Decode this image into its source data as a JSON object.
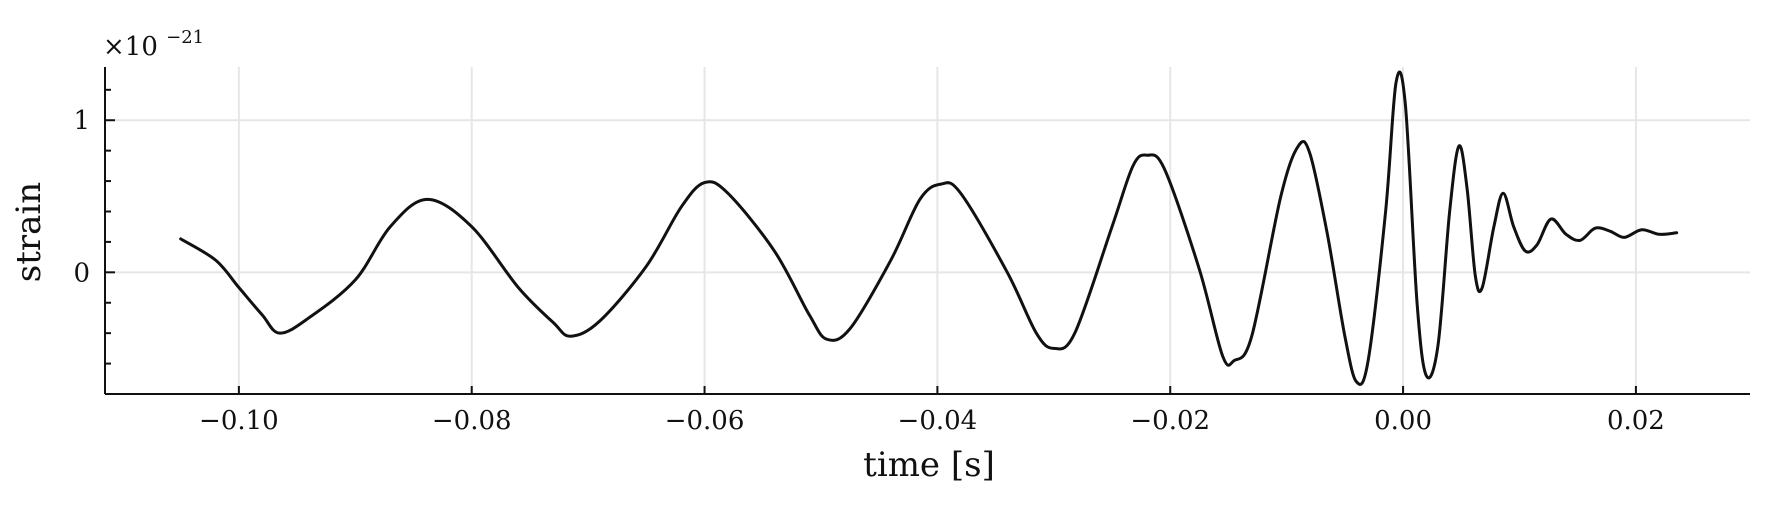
{
  "chart_data": {
    "type": "line",
    "title": "",
    "xlabel": "time [s]",
    "ylabel": "strain",
    "y_multiplier": {
      "base": "×10",
      "exponent": "−21"
    },
    "xlim": [
      -0.1115,
      0.0298
    ],
    "ylim": [
      -0.8,
      1.35
    ],
    "grid": true,
    "x_ticks": [
      {
        "value": -0.1,
        "label": "−0.10"
      },
      {
        "value": -0.08,
        "label": "−0.08"
      },
      {
        "value": -0.06,
        "label": "−0.06"
      },
      {
        "value": -0.04,
        "label": "−0.04"
      },
      {
        "value": -0.02,
        "label": "−0.02"
      },
      {
        "value": 0.0,
        "label": "0.00"
      },
      {
        "value": 0.02,
        "label": "0.02"
      }
    ],
    "y_ticks": [
      {
        "value": 1,
        "label": "1"
      },
      {
        "value": 0,
        "label": "0"
      }
    ],
    "y_minor_ticks": [
      -0.6,
      -0.4,
      -0.2,
      0.2,
      0.4,
      0.6,
      0.8,
      1.2
    ],
    "series": [
      {
        "color": "#111111",
        "points": [
          [
            -0.105,
            0.22
          ],
          [
            -0.102,
            0.08
          ],
          [
            -0.1,
            -0.1
          ],
          [
            -0.098,
            -0.28
          ],
          [
            -0.0965,
            -0.4
          ],
          [
            -0.094,
            -0.3
          ],
          [
            -0.09,
            -0.05
          ],
          [
            -0.087,
            0.3
          ],
          [
            -0.0838,
            0.48
          ],
          [
            -0.08,
            0.3
          ],
          [
            -0.076,
            -0.1
          ],
          [
            -0.073,
            -0.33
          ],
          [
            -0.0715,
            -0.42
          ],
          [
            -0.069,
            -0.32
          ],
          [
            -0.065,
            0.04
          ],
          [
            -0.062,
            0.43
          ],
          [
            -0.06,
            0.59
          ],
          [
            -0.058,
            0.52
          ],
          [
            -0.054,
            0.14
          ],
          [
            -0.051,
            -0.28
          ],
          [
            -0.0495,
            -0.44
          ],
          [
            -0.0475,
            -0.37
          ],
          [
            -0.044,
            0.08
          ],
          [
            -0.0415,
            0.48
          ],
          [
            -0.0397,
            0.58
          ],
          [
            -0.038,
            0.52
          ],
          [
            -0.034,
            0.0
          ],
          [
            -0.0315,
            -0.4
          ],
          [
            -0.03,
            -0.5
          ],
          [
            -0.0282,
            -0.4
          ],
          [
            -0.025,
            0.3
          ],
          [
            -0.0232,
            0.7
          ],
          [
            -0.022,
            0.77
          ],
          [
            -0.0205,
            0.68
          ],
          [
            -0.0175,
            0.02
          ],
          [
            -0.0155,
            -0.55
          ],
          [
            -0.0145,
            -0.58
          ],
          [
            -0.013,
            -0.42
          ],
          [
            -0.0105,
            0.5
          ],
          [
            -0.009,
            0.83
          ],
          [
            -0.008,
            0.78
          ],
          [
            -0.0065,
            0.25
          ],
          [
            -0.005,
            -0.42
          ],
          [
            -0.004,
            -0.72
          ],
          [
            -0.003,
            -0.58
          ],
          [
            -0.0015,
            0.4
          ],
          [
            -0.0006,
            1.25
          ],
          [
            0.0002,
            1.1
          ],
          [
            0.0012,
            -0.2
          ],
          [
            0.002,
            -0.68
          ],
          [
            0.003,
            -0.48
          ],
          [
            0.004,
            0.4
          ],
          [
            0.0048,
            0.83
          ],
          [
            0.0055,
            0.55
          ],
          [
            0.0062,
            -0.02
          ],
          [
            0.0068,
            -0.1
          ],
          [
            0.0078,
            0.3
          ],
          [
            0.0086,
            0.52
          ],
          [
            0.0095,
            0.3
          ],
          [
            0.0105,
            0.14
          ],
          [
            0.0115,
            0.18
          ],
          [
            0.0127,
            0.35
          ],
          [
            0.014,
            0.25
          ],
          [
            0.0152,
            0.21
          ],
          [
            0.0165,
            0.29
          ],
          [
            0.0178,
            0.27
          ],
          [
            0.019,
            0.23
          ],
          [
            0.0205,
            0.28
          ],
          [
            0.022,
            0.25
          ],
          [
            0.0235,
            0.26
          ]
        ]
      }
    ]
  }
}
